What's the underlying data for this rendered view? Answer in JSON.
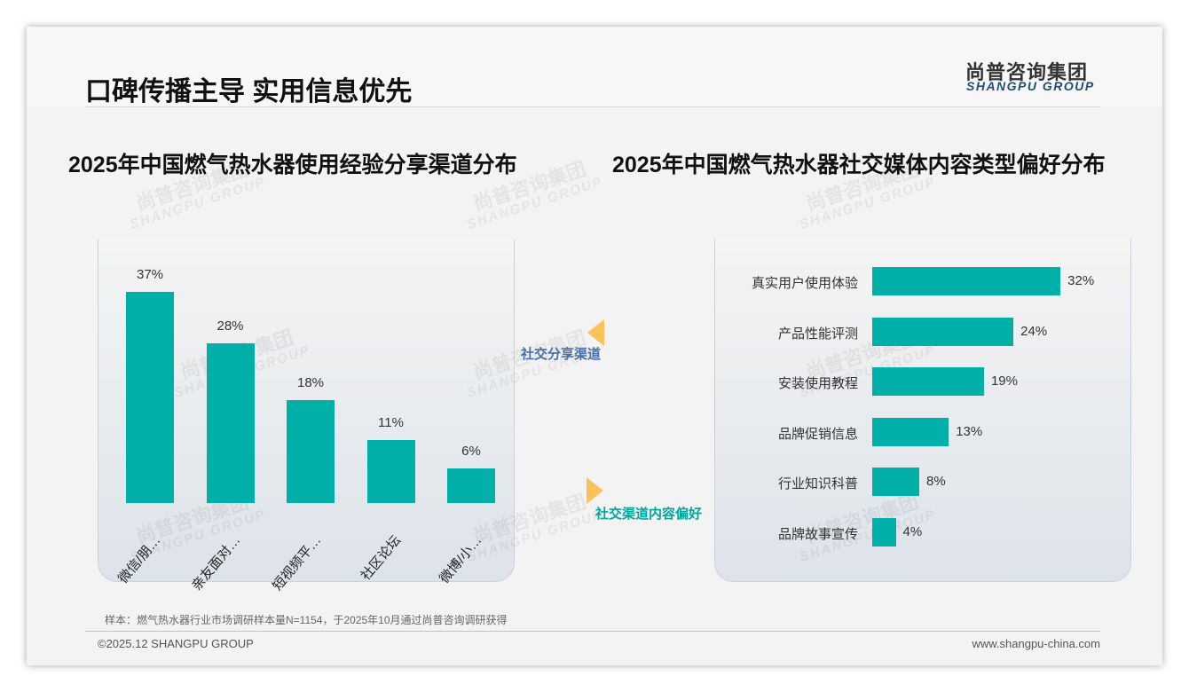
{
  "header": {
    "title": "口碑传播主导 实用信息优先",
    "logo_cn": "尚普咨询集团",
    "logo_en": "SHANGPU GROUP"
  },
  "arrows": {
    "left": "社交分享渠道",
    "right": "社交渠道内容偏好",
    "left_color": "#4a6fa5",
    "right_color": "#00a59c",
    "arrow_color": "#f9c35b"
  },
  "chart_data": [
    {
      "type": "bar",
      "title": "2025年中国燃气热水器使用经验分享渠道分布",
      "categories": [
        "微信/朋…",
        "亲友面对…",
        "短视频平…",
        "社区论坛",
        "微博/小…"
      ],
      "values": [
        37,
        28,
        18,
        11,
        6
      ],
      "unit": "%",
      "color": "#00b0a8"
    },
    {
      "type": "bar",
      "orientation": "horizontal",
      "title": "2025年中国燃气热水器社交媒体内容类型偏好分布",
      "categories": [
        "真实用户使用体验",
        "产品性能评测",
        "安装使用教程",
        "品牌促销信息",
        "行业知识科普",
        "品牌故事宣传"
      ],
      "values": [
        32,
        24,
        19,
        13,
        8,
        4
      ],
      "unit": "%",
      "color": "#00b0a8"
    }
  ],
  "footer": {
    "note": "样本：燃气热水器行业市场调研样本量N=1154，于2025年10月通过尚普咨询调研获得",
    "copyright": "©2025.12 SHANGPU GROUP",
    "url": "www.shangpu-china.com"
  }
}
